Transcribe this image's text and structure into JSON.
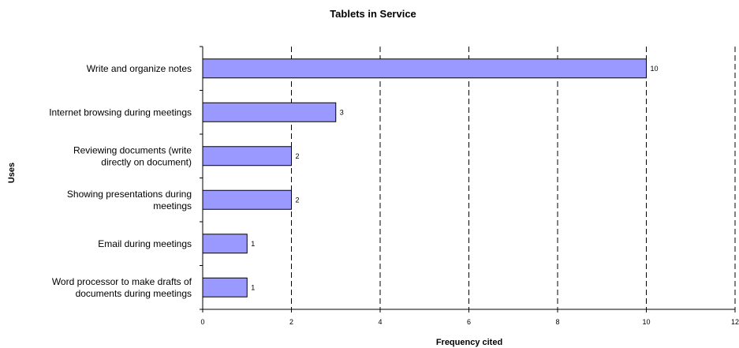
{
  "chart_data": {
    "type": "bar",
    "orientation": "horizontal",
    "title": "Tablets in Service",
    "xlabel": "Frequency cited",
    "ylabel": "Uses",
    "categories": [
      [
        "Write and organize notes"
      ],
      [
        "Internet browsing during meetings"
      ],
      [
        "Reviewing documents (write",
        "directly on document)"
      ],
      [
        "Showing presentations during",
        "meetings"
      ],
      [
        "Email during meetings"
      ],
      [
        "Word processor to make drafts of",
        "documents during meetings"
      ]
    ],
    "values": [
      10,
      3,
      2,
      2,
      1,
      1
    ],
    "data_labels": [
      "10",
      "3",
      "2",
      "2",
      "1",
      "1"
    ],
    "xlim": [
      0,
      12
    ],
    "x_ticks": [
      "0",
      "2",
      "4",
      "6",
      "8",
      "10",
      "12"
    ],
    "grid": "vertical dashed",
    "bar_color": "#9999ff",
    "bar_border_color": "#000000"
  }
}
